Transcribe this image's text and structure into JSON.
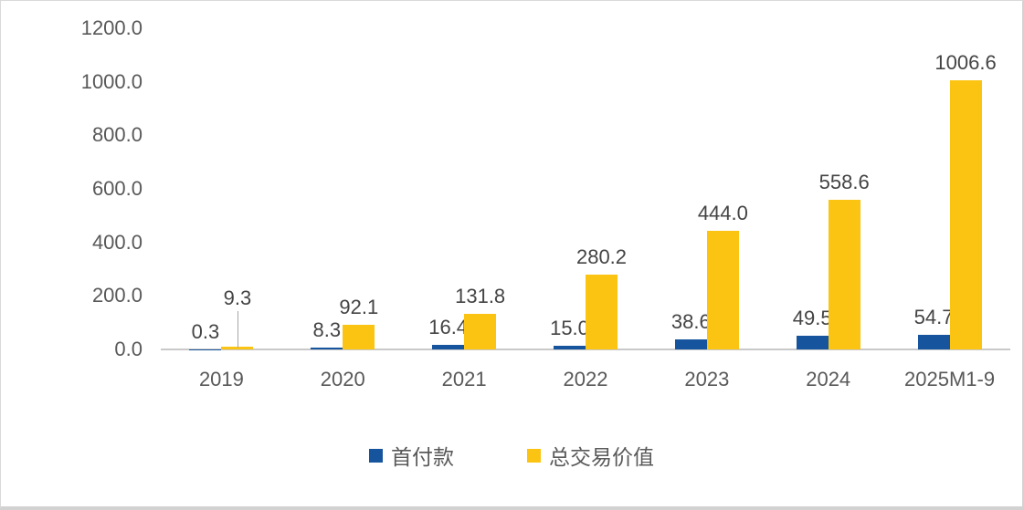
{
  "chart_data": {
    "type": "bar",
    "title": "",
    "xlabel": "",
    "ylabel": "",
    "categories": [
      "2019",
      "2020",
      "2021",
      "2022",
      "2023",
      "2024",
      "2025M1-9"
    ],
    "series": [
      {
        "name": "首付款",
        "color": "#17549E",
        "values": [
          0.3,
          8.3,
          16.4,
          15.0,
          38.6,
          49.5,
          54.7
        ],
        "labels": [
          "0.3",
          "8.3",
          "16.4",
          "15.0",
          "38.6",
          "49.5",
          "54.7"
        ]
      },
      {
        "name": "总交易价值",
        "color": "#FBC412",
        "values": [
          9.3,
          92.1,
          131.8,
          280.2,
          444.0,
          558.6,
          1006.6
        ],
        "labels": [
          "9.3",
          "92.1",
          "131.8",
          "280.2",
          "444.0",
          "558.6",
          "1006.6"
        ]
      }
    ],
    "y_axis": {
      "min": 0,
      "max": 1200,
      "step": 200,
      "tick_labels": [
        "0.0",
        "200.0",
        "400.0",
        "600.0",
        "800.0",
        "1000.0",
        "1200.0"
      ]
    },
    "ylim": [
      0,
      1200
    ],
    "grid": false,
    "legend_position": "bottom",
    "data_labels": "outside-end",
    "leader_lines": [
      {
        "series": 1,
        "index": 0
      }
    ]
  },
  "colors": {
    "bar_blue": "#17549E",
    "bar_yellow": "#FBC412",
    "axis_line": "#C9C9C9",
    "tick_text": "#595959",
    "value_label_text": "#444444",
    "leader_line": "#A6A6A6",
    "background": "#FFFFFF",
    "border": "#D9D9D9"
  }
}
